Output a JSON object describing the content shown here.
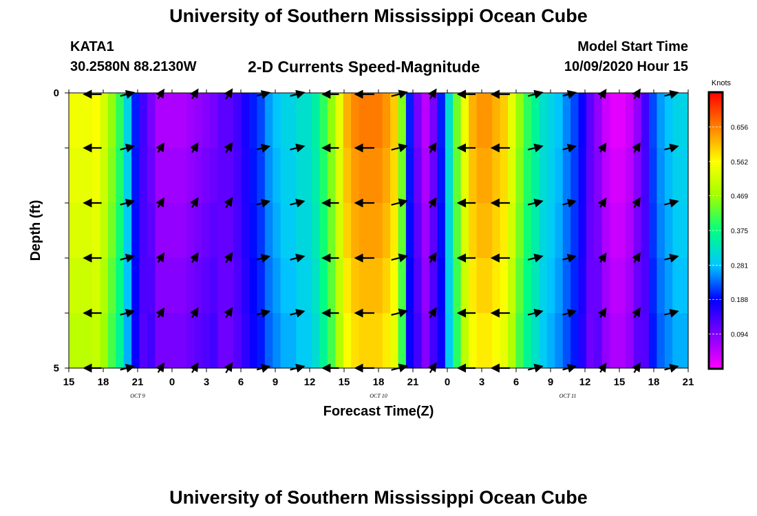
{
  "header": {
    "title": "University of Southern Mississippi Ocean Cube",
    "station_id": "KATA1",
    "station_coords": "30.2580N 88.2130W",
    "plot_title": "2-D Currents Speed-Magnitude",
    "model_start_label": "Model Start Time",
    "model_start_value": "10/09/2020 Hour 15"
  },
  "footer": {
    "title": "University of Southern Mississippi Ocean Cube"
  },
  "chart_data": {
    "type": "heatmap",
    "title": "2-D Currents Speed-Magnitude",
    "xlabel": "Forecast Time(Z)",
    "ylabel": "Depth (ft)",
    "x_tick_labels": [
      "15",
      "18",
      "21",
      "0",
      "3",
      "6",
      "9",
      "12",
      "15",
      "18",
      "21",
      "0",
      "3",
      "6",
      "9",
      "12",
      "15",
      "18",
      "21"
    ],
    "date_labels": [
      {
        "label": "OCT 9",
        "tick_index": 2
      },
      {
        "label": "OCT 10",
        "tick_index": 9
      },
      {
        "label": "OCT 11",
        "tick_index": 14.5
      }
    ],
    "y_tick_labels": [
      "0",
      "5"
    ],
    "ylim": [
      0,
      5
    ],
    "colorbar": {
      "unit": "Knots",
      "ticks": [
        "0.656",
        "0.562",
        "0.469",
        "0.375",
        "0.281",
        "0.188",
        "0.094"
      ],
      "range": [
        0.0,
        0.75
      ]
    },
    "speed_by_hour_at_surface": [
      0.55,
      0.55,
      0.55,
      0.56,
      0.52,
      0.46,
      0.4,
      0.3,
      0.2,
      0.14,
      0.1,
      0.06,
      0.06,
      0.06,
      0.06,
      0.07,
      0.08,
      0.09,
      0.1,
      0.12,
      0.12,
      0.14,
      0.17,
      0.2,
      0.22,
      0.26,
      0.28,
      0.3,
      0.3,
      0.32,
      0.32,
      0.35,
      0.4,
      0.46,
      0.54,
      0.62,
      0.65,
      0.66,
      0.66,
      0.66,
      0.64,
      0.6,
      0.45,
      0.2,
      0.1,
      0.05,
      0.1,
      0.2,
      0.32,
      0.44,
      0.55,
      0.62,
      0.64,
      0.64,
      0.62,
      0.6,
      0.54,
      0.46,
      0.4,
      0.36,
      0.32,
      0.3,
      0.28,
      0.25,
      0.22,
      0.18,
      0.12,
      0.08,
      0.04,
      0.02,
      0.02,
      0.04,
      0.08,
      0.14,
      0.22,
      0.26,
      0.28,
      0.3,
      0.3
    ]
  }
}
